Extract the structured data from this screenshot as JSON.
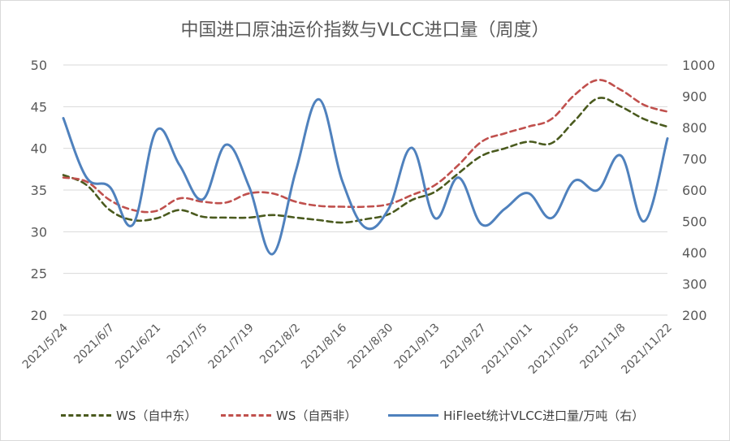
{
  "chart_data": {
    "type": "line",
    "title": "中国进口原油运价指数与VLCC进口量（周度）",
    "x": [
      "2021/5/24",
      "2021/5/31",
      "2021/6/7",
      "2021/6/14",
      "2021/6/21",
      "2021/6/28",
      "2021/7/5",
      "2021/7/12",
      "2021/7/19",
      "2021/7/26",
      "2021/8/2",
      "2021/8/9",
      "2021/8/16",
      "2021/8/23",
      "2021/8/30",
      "2021/9/6",
      "2021/9/13",
      "2021/9/20",
      "2021/9/27",
      "2021/10/4",
      "2021/10/11",
      "2021/10/18",
      "2021/10/25",
      "2021/11/1",
      "2021/11/8",
      "2021/11/15",
      "2021/11/22"
    ],
    "x_tick_labels": [
      "2021/5/24",
      "2021/6/7",
      "2021/6/21",
      "2021/7/5",
      "2021/7/19",
      "2021/8/2",
      "2021/8/16",
      "2021/8/30",
      "2021/9/13",
      "2021/9/27",
      "2021/10/11",
      "2021/10/25",
      "2021/11/8",
      "2021/11/22"
    ],
    "y_left": {
      "ylim": [
        20,
        50
      ],
      "ticks": [
        "20",
        "25",
        "30",
        "35",
        "40",
        "45",
        "50"
      ]
    },
    "y_right": {
      "ylim": [
        200,
        1000
      ],
      "ticks": [
        "200",
        "300",
        "400",
        "500",
        "600",
        "700",
        "800",
        "900",
        "1000"
      ]
    },
    "series": [
      {
        "name": "WS（自中东）",
        "axis": "left",
        "color": "#4a5a1e",
        "dash": true,
        "values": [
          36.8,
          35.6,
          32.6,
          31.4,
          31.6,
          32.6,
          31.8,
          31.7,
          31.7,
          32.0,
          31.7,
          31.4,
          31.1,
          31.5,
          32.1,
          33.8,
          34.8,
          37.0,
          39.1,
          40.0,
          40.8,
          40.6,
          43.3,
          46.0,
          45.0,
          43.5,
          42.6
        ]
      },
      {
        "name": "WS（自西非）",
        "axis": "left",
        "color": "#c0504d",
        "dash": true,
        "values": [
          36.5,
          36.0,
          33.8,
          32.6,
          32.5,
          34.0,
          33.6,
          33.5,
          34.6,
          34.6,
          33.6,
          33.1,
          33.0,
          33.0,
          33.3,
          34.4,
          35.6,
          38.0,
          40.8,
          41.8,
          42.6,
          43.5,
          46.4,
          48.2,
          47.0,
          45.2,
          44.4
        ]
      },
      {
        "name": "HiFleet统计VLCC进口量/万吨（右）",
        "axis": "right",
        "color": "#4f81bd",
        "dash": false,
        "values": [
          830,
          640,
          610,
          490,
          790,
          680,
          570,
          745,
          610,
          395,
          660,
          890,
          630,
          480,
          540,
          735,
          510,
          640,
          490,
          540,
          590,
          510,
          630,
          600,
          710,
          500,
          765
        ]
      }
    ]
  }
}
